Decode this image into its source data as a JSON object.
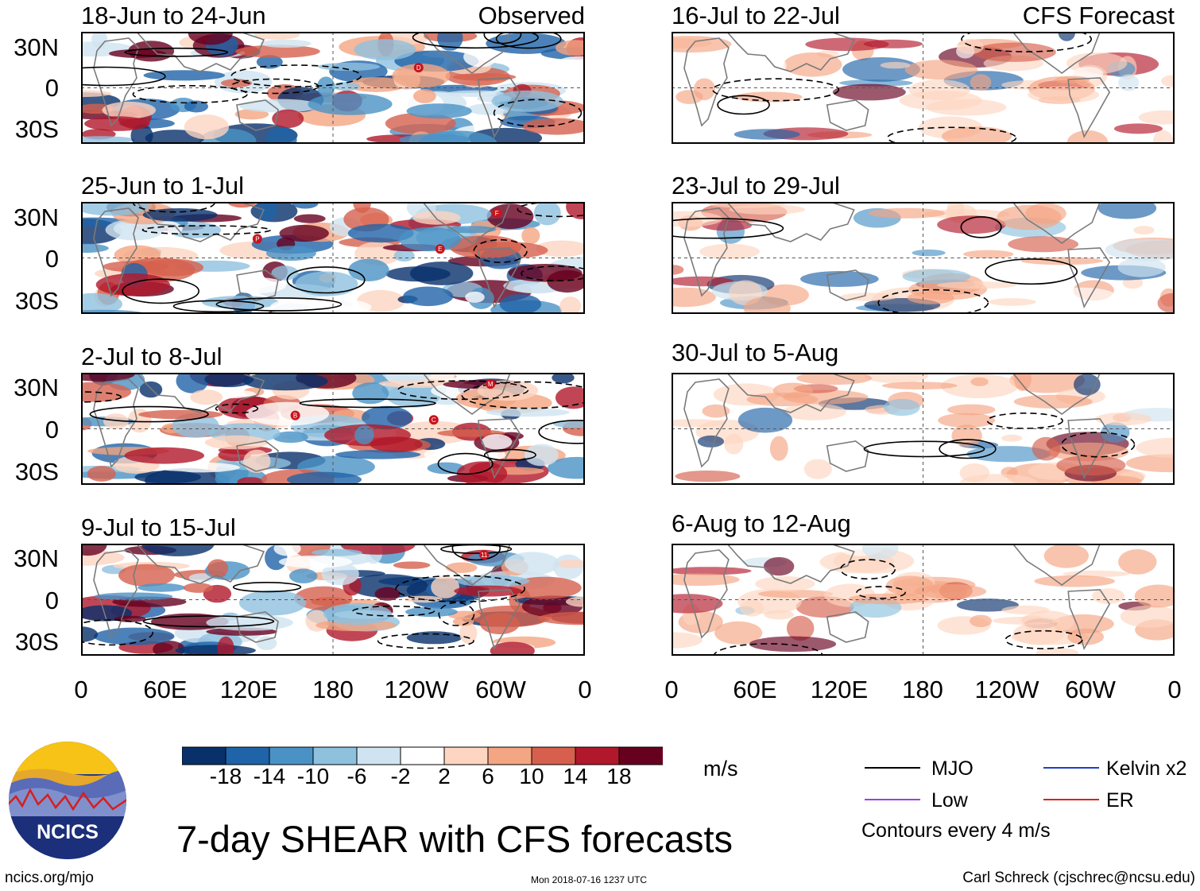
{
  "panels": {
    "left": [
      {
        "period": "18-Jun to 24-Jun",
        "tag": "Observed",
        "storms": [
          "D"
        ]
      },
      {
        "period": "25-Jun to 1-Jul",
        "tag": "",
        "storms": [
          "P",
          "E",
          "F"
        ]
      },
      {
        "period": "2-Jul to 8-Jul",
        "tag": "",
        "storms": [
          "C",
          "M",
          "B"
        ]
      },
      {
        "period": "9-Jul to 15-Jul",
        "tag": "",
        "storms": [
          "11"
        ]
      }
    ],
    "right": [
      {
        "period": "16-Jul to 22-Jul",
        "tag": "CFS Forecast"
      },
      {
        "period": "23-Jul to 29-Jul",
        "tag": ""
      },
      {
        "period": "30-Jul to 5-Aug",
        "tag": ""
      },
      {
        "period": "6-Aug to 12-Aug",
        "tag": ""
      }
    ]
  },
  "lat_labels": [
    "30N",
    "0",
    "30S"
  ],
  "lon_labels": [
    "0",
    "60E",
    "120E",
    "180",
    "120W",
    "60W",
    "0"
  ],
  "colorbar": {
    "ticks": [
      "-18",
      "-14",
      "-10",
      "-6",
      "-2",
      "2",
      "6",
      "10",
      "14",
      "18"
    ],
    "colors": [
      "#08306b",
      "#1f63a8",
      "#4a92c6",
      "#8ec1de",
      "#cfe3f0",
      "#ffffff",
      "#fdd5c0",
      "#f4a582",
      "#d6604d",
      "#b2182b",
      "#67001f"
    ],
    "unit": "m/s"
  },
  "title": "7-day SHEAR with CFS forecasts",
  "legend": {
    "items": [
      {
        "label": "MJO",
        "color": "#000000"
      },
      {
        "label": "Kelvin x2",
        "color": "#1f3fd0"
      },
      {
        "label": "Low",
        "color": "#9b40e0"
      },
      {
        "label": "ER",
        "color": "#e0201a"
      }
    ],
    "note": "Contours every 4 m/s"
  },
  "logo": {
    "text": "NCICS"
  },
  "footer": {
    "url": "ncics.org/mjo",
    "timestamp": "Mon 2018-07-16 1237 UTC",
    "author": "Carl Schreck (cjschrec@ncsu.edu)"
  }
}
